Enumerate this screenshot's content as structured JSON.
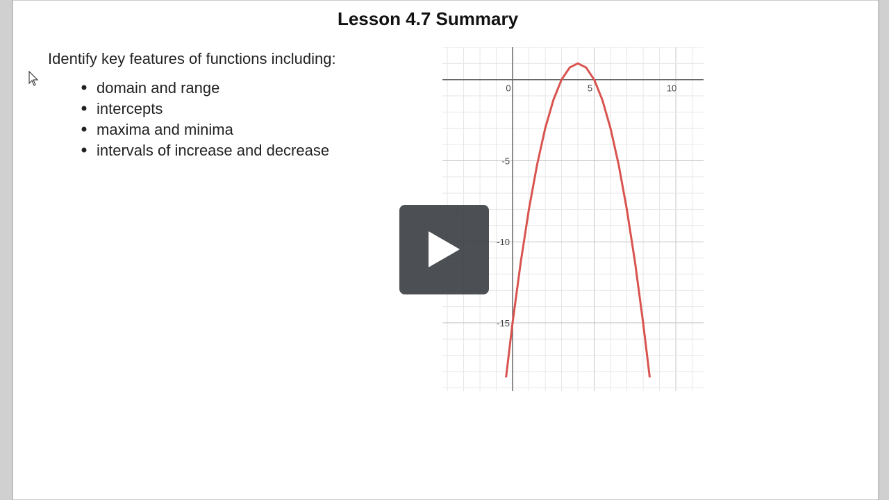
{
  "slide": {
    "title": "Lesson 4.7 Summary",
    "intro": "Identify key features of functions including:",
    "bullets": [
      "domain and range",
      "intercepts",
      "maxima and minima",
      "intervals of increase and decrease"
    ]
  },
  "graph": {
    "xlim": [
      -4.3,
      11.7
    ],
    "ylim": [
      -19.2,
      2
    ],
    "xticks": [
      0,
      5,
      10
    ],
    "yticks": [
      -5,
      -10,
      -15
    ],
    "grid_step": 1,
    "major_step": 5,
    "curve": {
      "color": "#d9534f",
      "x": [
        -0.4,
        0,
        0.5,
        1,
        1.5,
        2,
        2.5,
        3,
        3.5,
        4,
        4.5,
        5,
        5.5,
        6,
        6.5,
        7,
        7.5,
        8,
        8.4
      ],
      "y": [
        -18.36,
        -15,
        -11.25,
        -8,
        -5.25,
        -3,
        -1.25,
        0,
        0.75,
        1,
        0.75,
        0,
        -1.25,
        -3,
        -5.25,
        -8,
        -11.25,
        -15,
        -18.36
      ]
    }
  }
}
